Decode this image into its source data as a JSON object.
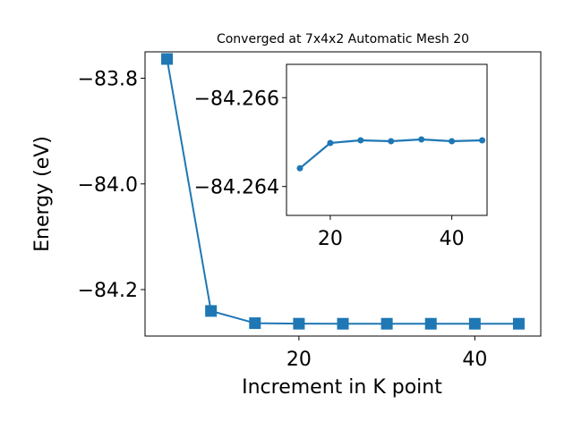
{
  "chart_data": [
    {
      "type": "line",
      "title": "Converged at 7x4x2 Automatic Mesh 20",
      "xlabel": "Increment in K point",
      "ylabel": "Energy (eV)",
      "xlim": [
        2.5,
        47.5
      ],
      "ylim": [
        -84.288,
        -83.75
      ],
      "xticks": [
        20,
        40
      ],
      "xtick_labels": [
        "20",
        "40"
      ],
      "yticks": [
        -83.8,
        -84.0,
        -84.2
      ],
      "ytick_labels": [
        "−83.8",
        "−84.0",
        "−84.2"
      ],
      "marker": "square",
      "color": "#1f77b4",
      "series": [
        {
          "x": [
            5,
            10,
            15,
            20,
            25,
            30,
            35,
            40,
            45
          ],
          "y": [
            -83.7635,
            -84.2405,
            -84.2636,
            -84.2646,
            -84.2647,
            -84.2647,
            -84.2647,
            -84.2647,
            -84.2647
          ]
        }
      ]
    },
    {
      "type": "line",
      "title": "",
      "xlabel": "",
      "ylabel": "",
      "xlim": [
        12.8,
        45.8
      ],
      "ylim": [
        -84.26335,
        -84.26675
      ],
      "yaxis_inverted": true,
      "xticks": [
        20,
        40
      ],
      "xtick_labels": [
        "20",
        "40"
      ],
      "yticks": [
        -84.266,
        -84.264
      ],
      "ytick_labels": [
        "−84.266",
        "−84.264"
      ],
      "marker": "circle",
      "color": "#1f77b4",
      "series": [
        {
          "x": [
            15,
            20,
            25,
            30,
            35,
            40,
            45
          ],
          "y": [
            -84.26441,
            -84.26498,
            -84.26504,
            -84.26502,
            -84.26506,
            -84.26502,
            -84.26504
          ]
        }
      ]
    }
  ]
}
